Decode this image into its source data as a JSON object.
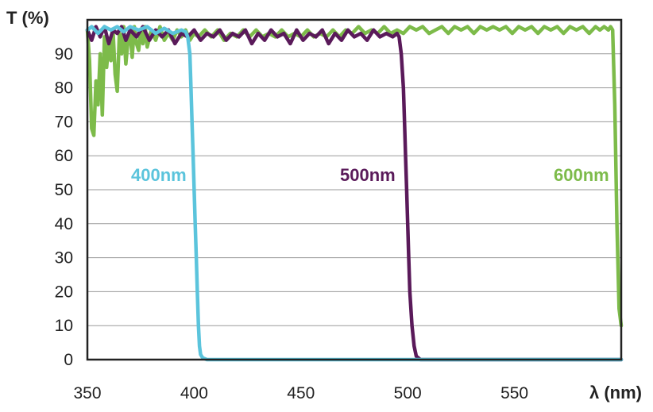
{
  "chart_data": {
    "type": "line",
    "xlabel": "λ (nm)",
    "ylabel": "T (%)",
    "xlim": [
      350,
      600
    ],
    "ylim": [
      0,
      100
    ],
    "x_ticks": [
      350,
      400,
      450,
      500,
      550
    ],
    "y_ticks": [
      0,
      10,
      20,
      30,
      40,
      50,
      60,
      70,
      80,
      90
    ],
    "grid": "horizontal",
    "legend": "inline labels",
    "series": [
      {
        "name": "400nm",
        "color": "#5bc4dc",
        "points": [
          [
            350,
            97
          ],
          [
            352,
            98
          ],
          [
            355,
            96
          ],
          [
            358,
            98
          ],
          [
            361,
            97
          ],
          [
            364,
            98
          ],
          [
            367,
            96.5
          ],
          [
            370,
            98
          ],
          [
            374,
            97
          ],
          [
            378,
            98
          ],
          [
            382,
            96
          ],
          [
            386,
            97.5
          ],
          [
            390,
            96
          ],
          [
            394,
            97
          ],
          [
            396,
            96.5
          ],
          [
            397,
            95
          ],
          [
            398,
            90
          ],
          [
            398.5,
            80
          ],
          [
            399,
            70
          ],
          [
            399.5,
            60
          ],
          [
            400,
            50
          ],
          [
            400.5,
            40
          ],
          [
            401,
            30
          ],
          [
            401.5,
            20
          ],
          [
            402,
            10
          ],
          [
            402.5,
            4
          ],
          [
            403,
            1.5
          ],
          [
            404,
            0.5
          ],
          [
            406,
            0
          ],
          [
            600,
            0
          ]
        ]
      },
      {
        "name": "500nm",
        "color": "#5a1a5a",
        "points": [
          [
            350,
            97
          ],
          [
            352,
            94
          ],
          [
            354,
            98
          ],
          [
            356,
            95
          ],
          [
            358,
            98
          ],
          [
            360,
            93
          ],
          [
            362,
            97
          ],
          [
            364,
            96
          ],
          [
            366,
            98
          ],
          [
            368,
            94
          ],
          [
            370,
            97
          ],
          [
            373,
            95
          ],
          [
            376,
            98
          ],
          [
            379,
            94
          ],
          [
            382,
            97
          ],
          [
            385,
            95
          ],
          [
            388,
            97
          ],
          [
            391,
            93
          ],
          [
            394,
            96
          ],
          [
            397,
            95
          ],
          [
            400,
            97
          ],
          [
            403,
            94
          ],
          [
            406,
            96
          ],
          [
            409,
            95
          ],
          [
            412,
            97
          ],
          [
            415,
            94
          ],
          [
            418,
            96
          ],
          [
            421,
            95
          ],
          [
            424,
            97
          ],
          [
            427,
            93
          ],
          [
            430,
            96
          ],
          [
            433,
            94
          ],
          [
            436,
            97
          ],
          [
            439,
            95
          ],
          [
            442,
            96
          ],
          [
            445,
            93
          ],
          [
            448,
            97
          ],
          [
            451,
            94
          ],
          [
            454,
            96
          ],
          [
            457,
            95
          ],
          [
            460,
            97
          ],
          [
            463,
            93
          ],
          [
            466,
            96
          ],
          [
            469,
            94
          ],
          [
            472,
            97
          ],
          [
            475,
            95
          ],
          [
            478,
            96
          ],
          [
            481,
            94
          ],
          [
            484,
            97
          ],
          [
            487,
            95
          ],
          [
            490,
            96
          ],
          [
            493,
            95
          ],
          [
            495,
            96
          ],
          [
            496,
            95
          ],
          [
            497,
            90
          ],
          [
            498,
            80
          ],
          [
            498.5,
            70
          ],
          [
            499,
            60
          ],
          [
            499.5,
            50
          ],
          [
            500,
            40
          ],
          [
            500.5,
            30
          ],
          [
            501,
            20
          ],
          [
            502,
            10
          ],
          [
            503,
            4
          ],
          [
            504,
            1
          ],
          [
            506,
            0
          ],
          [
            600,
            0
          ]
        ]
      },
      {
        "name": "600nm",
        "color": "#7dbb4a",
        "points": [
          [
            350,
            97
          ],
          [
            351,
            88
          ],
          [
            352,
            68
          ],
          [
            353,
            66
          ],
          [
            354,
            82
          ],
          [
            355,
            75
          ],
          [
            356,
            90
          ],
          [
            357,
            72
          ],
          [
            358,
            95
          ],
          [
            359,
            86
          ],
          [
            360,
            93
          ],
          [
            361,
            88
          ],
          [
            362,
            97
          ],
          [
            363,
            84
          ],
          [
            364,
            79
          ],
          [
            365,
            96
          ],
          [
            366,
            90
          ],
          [
            367,
            98
          ],
          [
            368,
            87
          ],
          [
            369,
            94
          ],
          [
            370,
            96
          ],
          [
            371,
            89
          ],
          [
            372,
            98
          ],
          [
            373,
            93
          ],
          [
            374,
            91
          ],
          [
            375,
            97
          ],
          [
            376,
            93
          ],
          [
            377,
            98
          ],
          [
            378,
            92
          ],
          [
            380,
            97
          ],
          [
            382,
            94
          ],
          [
            384,
            98
          ],
          [
            386,
            94
          ],
          [
            388,
            96
          ],
          [
            390,
            94
          ],
          [
            392,
            97
          ],
          [
            394,
            95
          ],
          [
            396,
            97
          ],
          [
            398,
            94
          ],
          [
            400,
            96
          ],
          [
            402,
            95
          ],
          [
            405,
            97
          ],
          [
            408,
            95
          ],
          [
            411,
            97
          ],
          [
            414,
            94
          ],
          [
            417,
            96
          ],
          [
            420,
            95
          ],
          [
            423,
            97
          ],
          [
            426,
            95
          ],
          [
            429,
            97
          ],
          [
            432,
            95
          ],
          [
            435,
            96
          ],
          [
            438,
            95
          ],
          [
            441,
            97
          ],
          [
            444,
            95
          ],
          [
            447,
            96
          ],
          [
            450,
            95
          ],
          [
            453,
            97
          ],
          [
            456,
            95
          ],
          [
            459,
            96
          ],
          [
            462,
            95
          ],
          [
            465,
            97
          ],
          [
            468,
            95
          ],
          [
            471,
            97
          ],
          [
            474,
            96
          ],
          [
            477,
            98
          ],
          [
            480,
            96
          ],
          [
            483,
            97
          ],
          [
            486,
            96
          ],
          [
            489,
            98
          ],
          [
            492,
            96
          ],
          [
            495,
            97
          ],
          [
            498,
            96
          ],
          [
            501,
            98
          ],
          [
            504,
            97
          ],
          [
            507,
            98
          ],
          [
            510,
            96
          ],
          [
            513,
            97
          ],
          [
            516,
            98
          ],
          [
            519,
            96
          ],
          [
            522,
            98
          ],
          [
            525,
            97
          ],
          [
            528,
            98
          ],
          [
            531,
            96
          ],
          [
            534,
            98
          ],
          [
            537,
            97
          ],
          [
            540,
            98
          ],
          [
            543,
            97
          ],
          [
            546,
            98
          ],
          [
            549,
            96
          ],
          [
            552,
            98
          ],
          [
            555,
            97
          ],
          [
            558,
            98
          ],
          [
            561,
            96
          ],
          [
            564,
            98
          ],
          [
            567,
            97
          ],
          [
            570,
            98
          ],
          [
            573,
            96
          ],
          [
            576,
            98
          ],
          [
            579,
            97
          ],
          [
            582,
            98
          ],
          [
            585,
            96
          ],
          [
            588,
            98
          ],
          [
            590,
            97
          ],
          [
            592,
            98
          ],
          [
            594,
            97
          ],
          [
            595,
            98
          ],
          [
            596,
            97
          ],
          [
            597,
            75
          ],
          [
            598,
            40
          ],
          [
            599,
            15
          ],
          [
            600,
            10
          ]
        ]
      }
    ]
  }
}
